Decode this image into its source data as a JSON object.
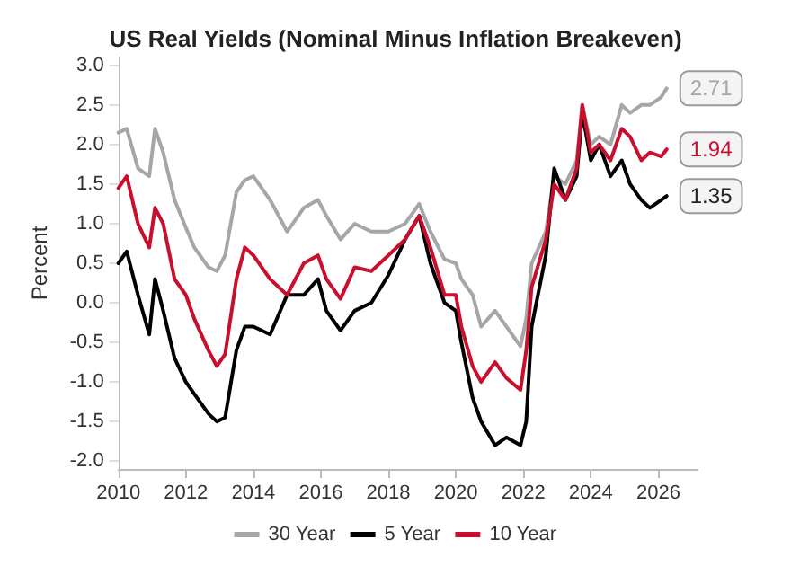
{
  "chart_data": {
    "type": "line",
    "title": "US Real Yields (Nominal Minus Inflation Breakeven)",
    "ylabel": "Percent",
    "x": [
      "2010-01",
      "2010-04",
      "2010-08",
      "2010-12",
      "2011-02",
      "2011-05",
      "2011-09",
      "2012-01",
      "2012-04",
      "2012-09",
      "2012-12",
      "2013-03",
      "2013-07",
      "2013-10",
      "2014-01",
      "2014-07",
      "2015-01",
      "2015-07",
      "2015-12",
      "2016-03",
      "2016-08",
      "2017-01",
      "2017-07",
      "2018-01",
      "2018-07",
      "2018-12",
      "2019-04",
      "2019-09",
      "2020-01",
      "2020-03",
      "2020-07",
      "2020-10",
      "2021-03",
      "2021-07",
      "2021-12",
      "2022-02",
      "2022-04",
      "2022-09",
      "2022-12",
      "2023-04",
      "2023-08",
      "2023-10",
      "2024-01",
      "2024-04",
      "2024-08",
      "2024-12",
      "2025-03",
      "2025-07",
      "2025-10",
      "2026-02",
      "2026-04"
    ],
    "series": [
      {
        "name": "30 Year",
        "color": "#a6a6a6",
        "values": [
          2.15,
          2.2,
          1.7,
          1.6,
          2.2,
          1.9,
          1.3,
          0.95,
          0.7,
          0.45,
          0.4,
          0.6,
          1.4,
          1.55,
          1.6,
          1.3,
          0.9,
          1.2,
          1.3,
          1.1,
          0.8,
          1.0,
          0.9,
          0.9,
          1.0,
          1.25,
          0.9,
          0.55,
          0.5,
          0.3,
          0.1,
          -0.3,
          -0.1,
          -0.3,
          -0.55,
          -0.2,
          0.5,
          0.9,
          1.6,
          1.5,
          1.8,
          2.5,
          2.0,
          2.1,
          2.0,
          2.5,
          2.4,
          2.5,
          2.5,
          2.6,
          2.71
        ],
        "value_labels": [
          null,
          null,
          null,
          null,
          null,
          null,
          null,
          null,
          null,
          null,
          null,
          null,
          null,
          null,
          null,
          null,
          null,
          null,
          null,
          null,
          null,
          null,
          null,
          null,
          null,
          null,
          null,
          null,
          null,
          null,
          null,
          null,
          null,
          null,
          null,
          null,
          null,
          null,
          null,
          null,
          null,
          null,
          null,
          null,
          null,
          null,
          null,
          null,
          null,
          null,
          "2.71"
        ]
      },
      {
        "name": "5 Year",
        "color": "#000000",
        "values": [
          0.5,
          0.65,
          0.1,
          -0.4,
          0.3,
          -0.1,
          -0.7,
          -1.0,
          -1.15,
          -1.4,
          -1.5,
          -1.45,
          -0.6,
          -0.3,
          -0.3,
          -0.4,
          0.1,
          0.1,
          0.3,
          -0.1,
          -0.35,
          -0.1,
          0.0,
          0.35,
          0.8,
          1.1,
          0.5,
          0.0,
          -0.1,
          -0.5,
          -1.2,
          -1.5,
          -1.8,
          -1.7,
          -1.8,
          -1.5,
          -0.3,
          0.6,
          1.7,
          1.3,
          1.6,
          2.4,
          1.8,
          2.0,
          1.6,
          1.8,
          1.5,
          1.3,
          1.2,
          1.3,
          1.35
        ],
        "value_labels": [
          null,
          null,
          null,
          null,
          null,
          null,
          null,
          null,
          null,
          null,
          null,
          null,
          null,
          null,
          null,
          null,
          null,
          null,
          null,
          null,
          null,
          null,
          null,
          null,
          null,
          null,
          null,
          null,
          null,
          null,
          null,
          null,
          null,
          null,
          null,
          null,
          null,
          null,
          null,
          null,
          null,
          null,
          null,
          null,
          null,
          null,
          null,
          null,
          null,
          null,
          "1.35"
        ]
      },
      {
        "name": "10 Year",
        "color": "#c8102e",
        "values": [
          1.45,
          1.6,
          1.0,
          0.7,
          1.2,
          1.0,
          0.3,
          0.1,
          -0.2,
          -0.6,
          -0.8,
          -0.65,
          0.3,
          0.7,
          0.6,
          0.3,
          0.1,
          0.5,
          0.6,
          0.3,
          0.05,
          0.45,
          0.4,
          0.6,
          0.8,
          1.1,
          0.7,
          0.1,
          0.1,
          -0.3,
          -0.8,
          -1.0,
          -0.75,
          -0.95,
          -1.1,
          -0.6,
          0.2,
          0.8,
          1.5,
          1.3,
          1.7,
          2.5,
          1.9,
          2.0,
          1.8,
          2.2,
          2.1,
          1.8,
          1.9,
          1.85,
          1.94
        ],
        "value_labels": [
          null,
          null,
          null,
          null,
          null,
          null,
          null,
          null,
          null,
          null,
          null,
          null,
          null,
          null,
          null,
          null,
          null,
          null,
          null,
          null,
          null,
          null,
          null,
          null,
          null,
          null,
          null,
          null,
          null,
          null,
          null,
          null,
          null,
          null,
          null,
          null,
          null,
          null,
          null,
          null,
          null,
          null,
          null,
          null,
          null,
          null,
          null,
          null,
          null,
          null,
          "1.94"
        ]
      }
    ],
    "xlim": [
      "2010-01",
      "2027-03"
    ],
    "xticks": [
      "2010",
      "2012",
      "2014",
      "2016",
      "2018",
      "2020",
      "2022",
      "2024",
      "2026"
    ],
    "ylim": [
      -2.1,
      3.1
    ],
    "yticks": [
      {
        "value": -2,
        "label": "-2.0"
      },
      {
        "value": -1.5,
        "label": "-1.5"
      },
      {
        "value": -1,
        "label": "-1.0"
      },
      {
        "value": -0.5,
        "label": "-0.5"
      },
      {
        "value": 0,
        "label": "0.0"
      },
      {
        "value": 0.5,
        "label": "0.5"
      },
      {
        "value": 1,
        "label": "1.0"
      },
      {
        "value": 1.5,
        "label": "1.5"
      },
      {
        "value": 2,
        "label": "2.0"
      },
      {
        "value": 2.5,
        "label": "2.5"
      },
      {
        "value": 3,
        "label": "3.0"
      }
    ],
    "grid": false,
    "legend": "bottom",
    "marker": "none",
    "line_style": "solid"
  }
}
